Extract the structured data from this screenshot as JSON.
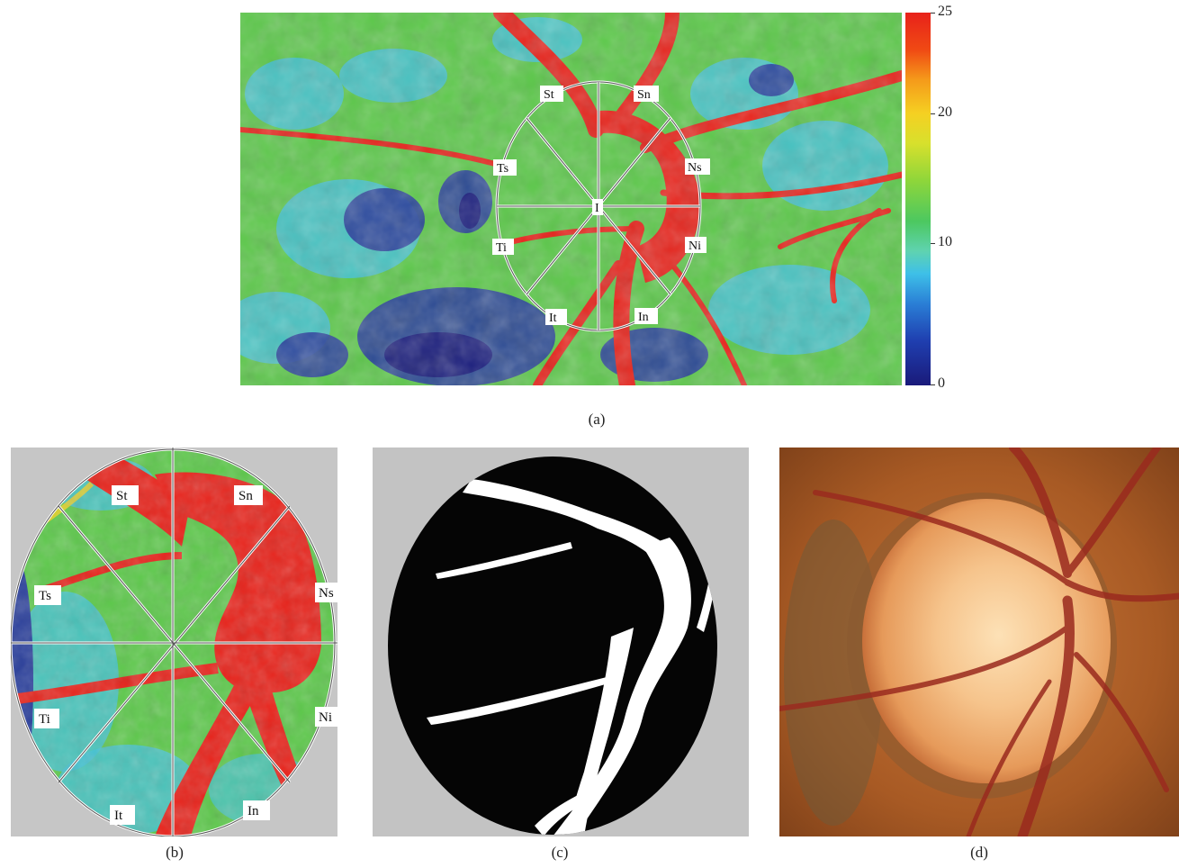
{
  "figure": {
    "captions": {
      "a": "(a)",
      "b": "(b)",
      "c": "(c)",
      "d": "(d)"
    },
    "colorbar": {
      "ticks": [
        "25",
        "20",
        "10",
        "0"
      ],
      "colors": {
        "high": "#e8221a",
        "mid_high": "#f5d022",
        "mid": "#4cc860",
        "low_mid": "#3ec0e8",
        "low": "#1a1a7a"
      }
    },
    "sector_labels": {
      "st": "St",
      "sn": "Sn",
      "ts": "Ts",
      "ns": "Ns",
      "ti": "Ti",
      "ni": "Ni",
      "it": "It",
      "in": "In",
      "center": "I"
    },
    "colors": {
      "vessel_red": "#e8221a",
      "background_green": "#5cc84a",
      "cyan": "#45c2d6",
      "deep_blue": "#2a3f9c",
      "grey_bg": "#c6c6c6",
      "mask_black": "#050505",
      "mask_white": "#ffffff",
      "fundus_orange": "#b8682a",
      "disc_glow": "#f6c48c"
    }
  }
}
